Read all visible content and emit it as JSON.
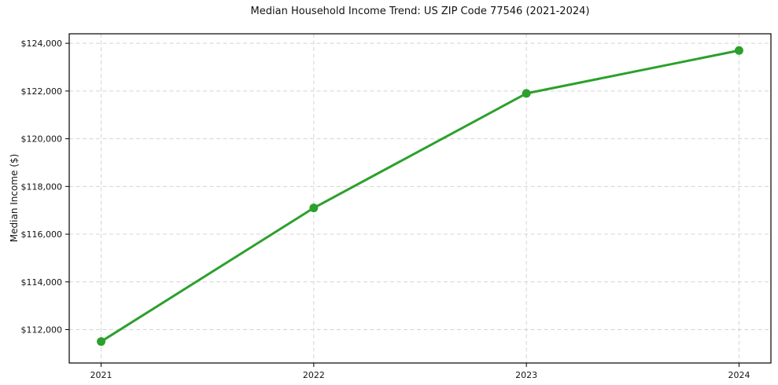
{
  "chart_data": {
    "type": "line",
    "title": "Median Household Income Trend: US ZIP Code 77546 (2021-2024)",
    "xlabel": "",
    "ylabel": "Median Income ($)",
    "x": [
      2021,
      2022,
      2023,
      2024
    ],
    "x_tick_labels": [
      "2021",
      "2022",
      "2023",
      "2024"
    ],
    "series": [
      {
        "name": "Median Household Income",
        "values": [
          111500,
          117100,
          121900,
          123700
        ]
      }
    ],
    "y_ticks": [
      112000,
      114000,
      116000,
      118000,
      120000,
      122000,
      124000
    ],
    "y_tick_labels": [
      "$112,000",
      "$114,000",
      "$116,000",
      "$118,000",
      "$120,000",
      "$122,000",
      "$124,000"
    ],
    "xlim": [
      2020.85,
      2024.15
    ],
    "ylim": [
      110600,
      124400
    ],
    "grid": "dashed-both-axes",
    "legend": "none",
    "line_color": "#2ca02c",
    "marker": "circle",
    "grid_color": "#d4d4d4",
    "frame_color": "#000000",
    "background": "#ffffff"
  }
}
